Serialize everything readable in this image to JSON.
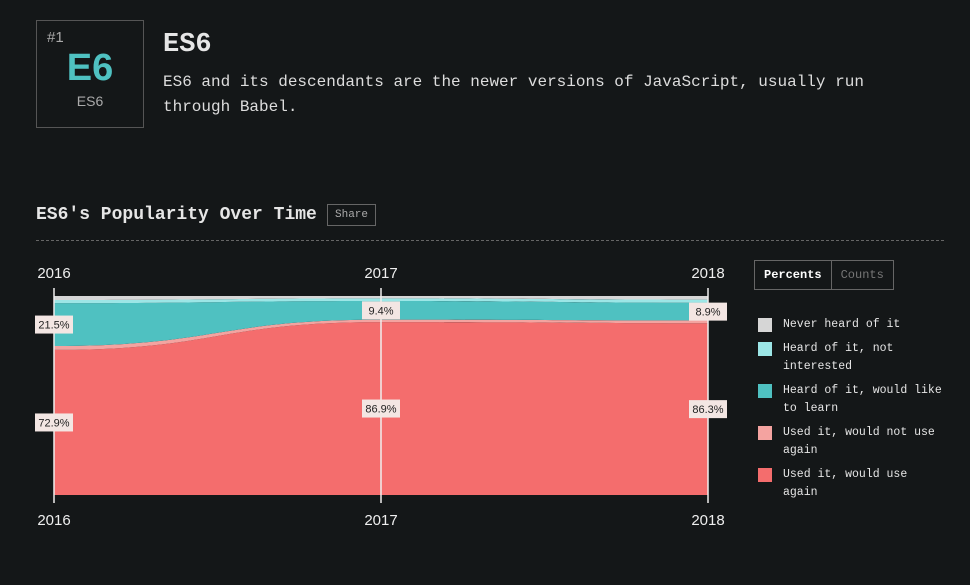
{
  "header": {
    "rank": "#1",
    "badge": "E6",
    "badge_sub": "ES6",
    "title": "ES6",
    "description": "ES6 and its descendants are the newer versions of JavaScript, usually run through Babel."
  },
  "section": {
    "title": "ES6's Popularity Over Time",
    "share": "Share",
    "toggles": [
      "Percents",
      "Counts"
    ]
  },
  "chart_data": {
    "type": "stacked-area",
    "x": [
      "2016",
      "2017",
      "2018"
    ],
    "ylim": [
      0,
      100
    ],
    "series": [
      {
        "name": "Used it, would use again",
        "color": "#f46d6d",
        "values": [
          72.9,
          86.9,
          86.3
        ],
        "value_labels": [
          "72.9%",
          "86.9%",
          "86.3%"
        ]
      },
      {
        "name": "Used it, would not use again",
        "color": "#f4a3a0",
        "values": [
          2.0,
          1.2,
          1.4
        ]
      },
      {
        "name": "Heard of it, would like to learn",
        "color": "#4fc1c1",
        "values": [
          21.5,
          9.4,
          8.9
        ],
        "value_labels": [
          "21.5%",
          "9.4%",
          "8.9%"
        ]
      },
      {
        "name": "Heard of it, not interested",
        "color": "#9ce6e6",
        "values": [
          1.6,
          1.3,
          1.6
        ]
      },
      {
        "name": "Never heard of it",
        "color": "#d6d6d6",
        "values": [
          2.0,
          1.2,
          1.8
        ]
      }
    ]
  }
}
